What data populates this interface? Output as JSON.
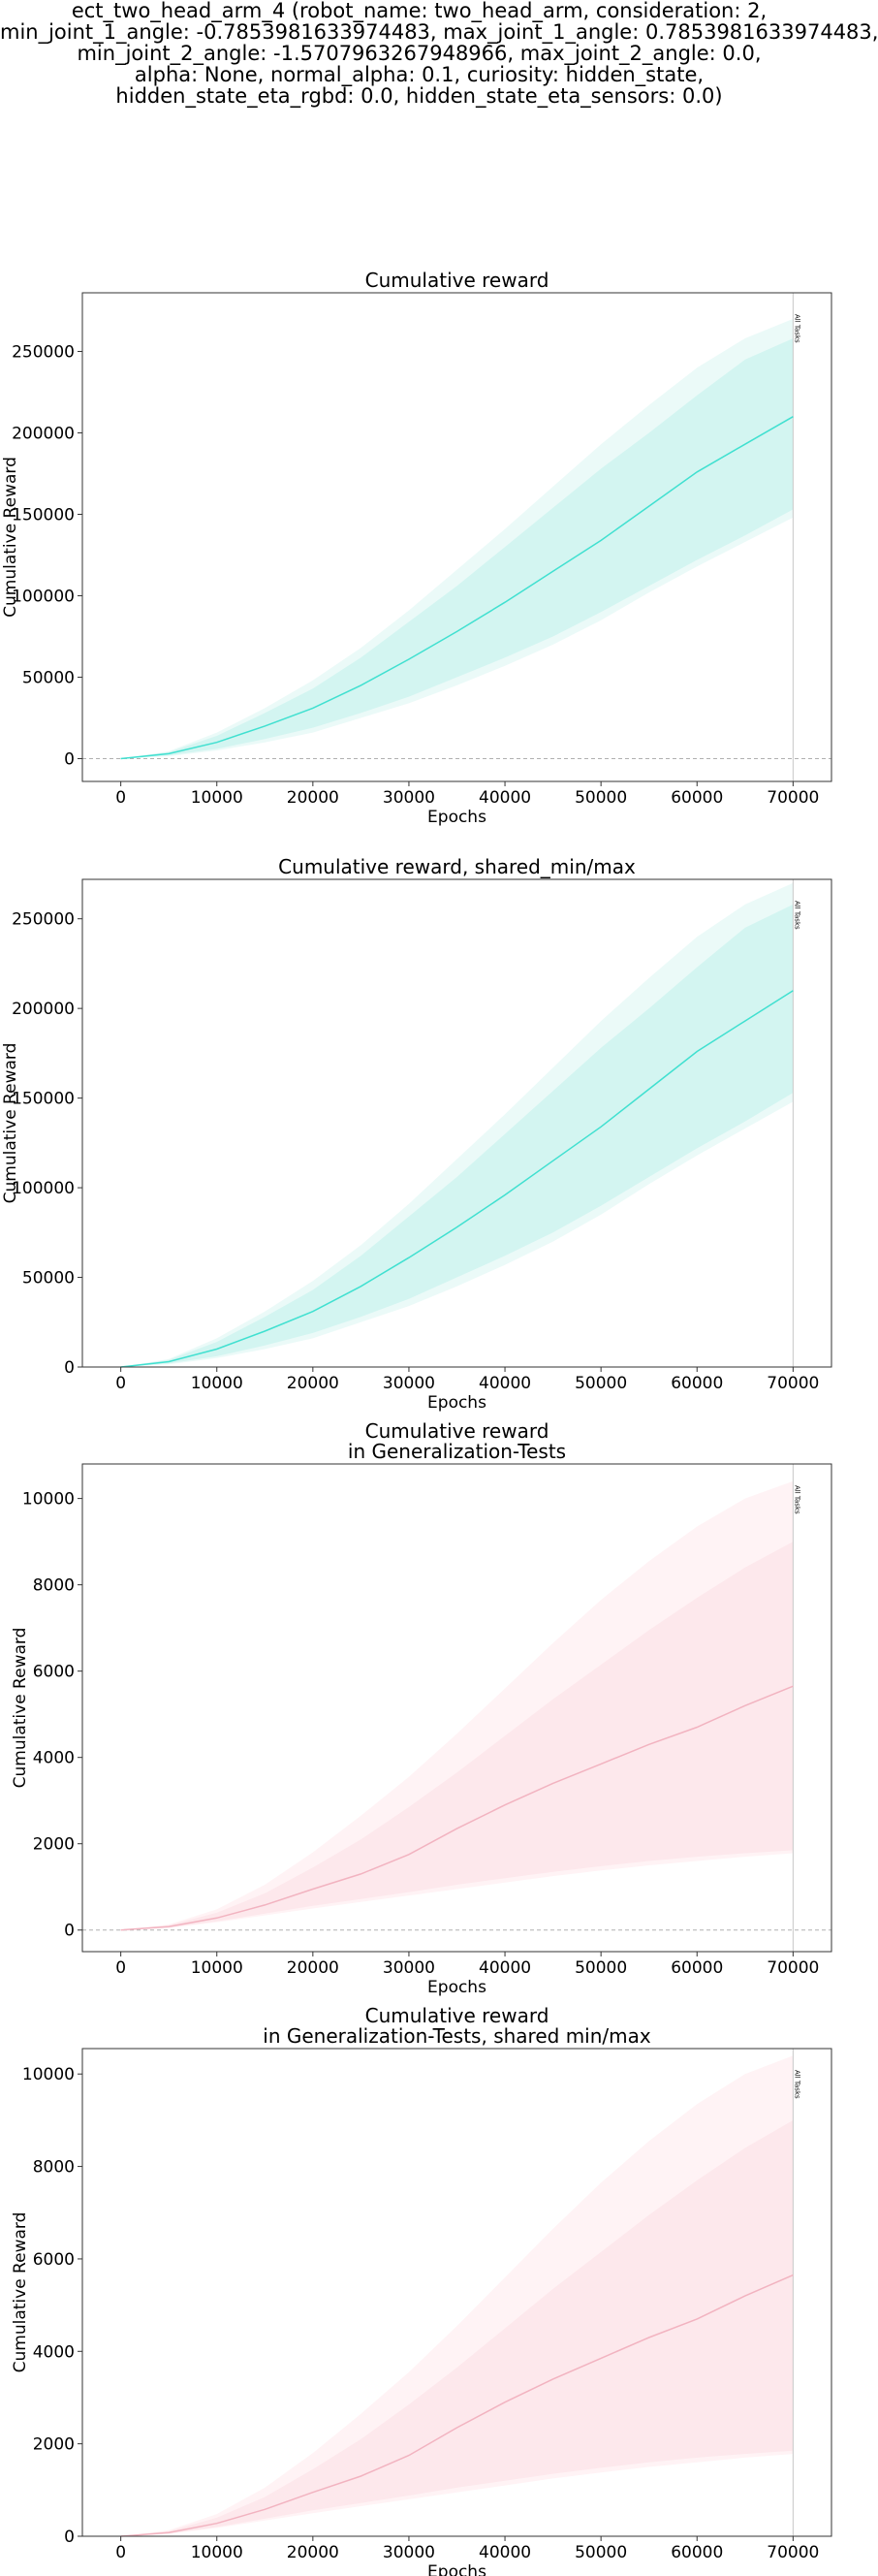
{
  "figure": {
    "suptitle_lines": [
      "ect_two_head_arm_4 (robot_name: two_head_arm, consideration: 2,",
      "min_joint_1_angle: -0.7853981633974483, max_joint_1_angle: 0.7853981633974483,",
      "min_joint_2_angle: -1.5707963267948966, max_joint_2_angle: 0.0,",
      "alpha: None, normal_alpha: 0.1, curiosity: hidden_state,",
      "hidden_state_eta_rgbd: 0.0, hidden_state_eta_sensors: 0.0)"
    ]
  },
  "chart_data": [
    {
      "type": "area",
      "title_lines": [
        "Cumulative reward"
      ],
      "xlabel": "Epochs",
      "ylabel": "Cumulative Reward",
      "xlim": [
        -4000,
        74000
      ],
      "ylim": [
        -14000,
        286000
      ],
      "xticks": [
        0,
        10000,
        20000,
        30000,
        40000,
        50000,
        60000,
        70000
      ],
      "yticks": [
        0,
        50000,
        100000,
        150000,
        200000,
        250000
      ],
      "zero_line": true,
      "vline": {
        "x": 70000,
        "label": "All Tasks"
      },
      "colors": {
        "line": "#40e0d0",
        "band_inner": "#d3f5f1",
        "band_outer": "#ebfaf8"
      },
      "series": [
        {
          "x": [
            0,
            5000,
            10000,
            15000,
            20000,
            25000,
            30000,
            35000,
            40000,
            45000,
            50000,
            55000,
            60000,
            65000,
            70000
          ],
          "mean": [
            0,
            3000,
            10000,
            20000,
            31000,
            45000,
            61000,
            78000,
            96000,
            115000,
            134000,
            155000,
            176000,
            193000,
            210000
          ],
          "std_lo": [
            0,
            2000,
            6000,
            12000,
            19000,
            28000,
            38000,
            50000,
            62000,
            75000,
            90000,
            106000,
            122000,
            137000,
            153000
          ],
          "std_hi": [
            0,
            4000,
            14000,
            28000,
            43000,
            62000,
            84000,
            106000,
            130000,
            154000,
            178000,
            200000,
            223000,
            245000,
            258000
          ],
          "min": [
            0,
            1500,
            5000,
            10000,
            16000,
            25000,
            34000,
            45000,
            57000,
            70000,
            85000,
            102000,
            118000,
            133000,
            148000
          ],
          "max": [
            0,
            4500,
            16000,
            31000,
            48000,
            68000,
            91000,
            116000,
            141000,
            167000,
            193000,
            217000,
            240000,
            258000,
            270000
          ]
        }
      ]
    },
    {
      "type": "area",
      "title_lines": [
        "Cumulative reward, shared_min/max"
      ],
      "xlabel": "Epochs",
      "ylabel": "Cumulative Reward",
      "xlim": [
        -4000,
        74000
      ],
      "ylim": [
        0,
        272000
      ],
      "xticks": [
        0,
        10000,
        20000,
        30000,
        40000,
        50000,
        60000,
        70000
      ],
      "yticks": [
        0,
        50000,
        100000,
        150000,
        200000,
        250000
      ],
      "zero_line": false,
      "vline": {
        "x": 70000,
        "label": "All Tasks"
      },
      "colors": {
        "line": "#40e0d0",
        "band_inner": "#d3f5f1",
        "band_outer": "#ebfaf8"
      },
      "series": [
        {
          "x": [
            0,
            5000,
            10000,
            15000,
            20000,
            25000,
            30000,
            35000,
            40000,
            45000,
            50000,
            55000,
            60000,
            65000,
            70000
          ],
          "mean": [
            0,
            3000,
            10000,
            20000,
            31000,
            45000,
            61000,
            78000,
            96000,
            115000,
            134000,
            155000,
            176000,
            193000,
            210000
          ],
          "std_lo": [
            0,
            2000,
            6000,
            12000,
            19000,
            28000,
            38000,
            50000,
            62000,
            75000,
            90000,
            106000,
            122000,
            137000,
            153000
          ],
          "std_hi": [
            0,
            4000,
            14000,
            28000,
            43000,
            62000,
            84000,
            106000,
            130000,
            154000,
            178000,
            200000,
            223000,
            245000,
            258000
          ],
          "min": [
            0,
            1500,
            5000,
            10000,
            16000,
            25000,
            34000,
            45000,
            57000,
            70000,
            85000,
            102000,
            118000,
            133000,
            148000
          ],
          "max": [
            0,
            4500,
            16000,
            31000,
            48000,
            68000,
            91000,
            116000,
            141000,
            167000,
            193000,
            217000,
            240000,
            258000,
            270000
          ]
        }
      ]
    },
    {
      "type": "area",
      "title_lines": [
        "Cumulative reward",
        "in Generalization-Tests"
      ],
      "xlabel": "Epochs",
      "ylabel": "Cumulative Reward",
      "xlim": [
        -4000,
        74000
      ],
      "ylim": [
        -500,
        10800
      ],
      "xticks": [
        0,
        10000,
        20000,
        30000,
        40000,
        50000,
        60000,
        70000
      ],
      "yticks": [
        0,
        2000,
        4000,
        6000,
        8000,
        10000
      ],
      "zero_line": true,
      "vline": {
        "x": 70000,
        "label": "All Tasks"
      },
      "colors": {
        "line": "#f2b3c0",
        "band_inner": "#fde8ec",
        "band_outer": "#fff3f5"
      },
      "series": [
        {
          "x": [
            0,
            5000,
            10000,
            15000,
            20000,
            25000,
            30000,
            35000,
            40000,
            45000,
            50000,
            55000,
            60000,
            65000,
            70000
          ],
          "mean": [
            0,
            80,
            280,
            580,
            950,
            1300,
            1750,
            2350,
            2900,
            3400,
            3850,
            4300,
            4700,
            5200,
            5650
          ],
          "std_lo": [
            0,
            60,
            200,
            380,
            560,
            720,
            880,
            1050,
            1200,
            1350,
            1480,
            1600,
            1700,
            1780,
            1850
          ],
          "std_hi": [
            0,
            110,
            400,
            850,
            1450,
            2100,
            2850,
            3650,
            4500,
            5350,
            6150,
            6950,
            7700,
            8400,
            9000
          ],
          "min": [
            0,
            50,
            180,
            340,
            500,
            650,
            800,
            950,
            1100,
            1250,
            1380,
            1500,
            1600,
            1700,
            1780
          ],
          "max": [
            0,
            130,
            480,
            1050,
            1800,
            2650,
            3550,
            4550,
            5600,
            6650,
            7650,
            8550,
            9350,
            10000,
            10400
          ]
        }
      ]
    },
    {
      "type": "area",
      "title_lines": [
        "Cumulative reward",
        "in Generalization-Tests, shared min/max"
      ],
      "xlabel": "Epochs",
      "ylabel": "Cumulative Reward",
      "xlim": [
        -4000,
        74000
      ],
      "ylim": [
        0,
        10550
      ],
      "xticks": [
        0,
        10000,
        20000,
        30000,
        40000,
        50000,
        60000,
        70000
      ],
      "yticks": [
        0,
        2000,
        4000,
        6000,
        8000,
        10000
      ],
      "zero_line": false,
      "vline": {
        "x": 70000,
        "label": "All Tasks"
      },
      "colors": {
        "line": "#f2b3c0",
        "band_inner": "#fde8ec",
        "band_outer": "#fff3f5"
      },
      "series": [
        {
          "x": [
            0,
            5000,
            10000,
            15000,
            20000,
            25000,
            30000,
            35000,
            40000,
            45000,
            50000,
            55000,
            60000,
            65000,
            70000
          ],
          "mean": [
            0,
            80,
            280,
            580,
            950,
            1300,
            1750,
            2350,
            2900,
            3400,
            3850,
            4300,
            4700,
            5200,
            5650
          ],
          "std_lo": [
            0,
            60,
            200,
            380,
            560,
            720,
            880,
            1050,
            1200,
            1350,
            1480,
            1600,
            1700,
            1780,
            1850
          ],
          "std_hi": [
            0,
            110,
            400,
            850,
            1450,
            2100,
            2850,
            3650,
            4500,
            5350,
            6150,
            6950,
            7700,
            8400,
            9000
          ],
          "min": [
            0,
            50,
            180,
            340,
            500,
            650,
            800,
            950,
            1100,
            1250,
            1380,
            1500,
            1600,
            1700,
            1780
          ],
          "max": [
            0,
            130,
            480,
            1050,
            1800,
            2650,
            3550,
            4550,
            5600,
            6650,
            7650,
            8550,
            9350,
            10000,
            10400
          ]
        }
      ]
    }
  ]
}
